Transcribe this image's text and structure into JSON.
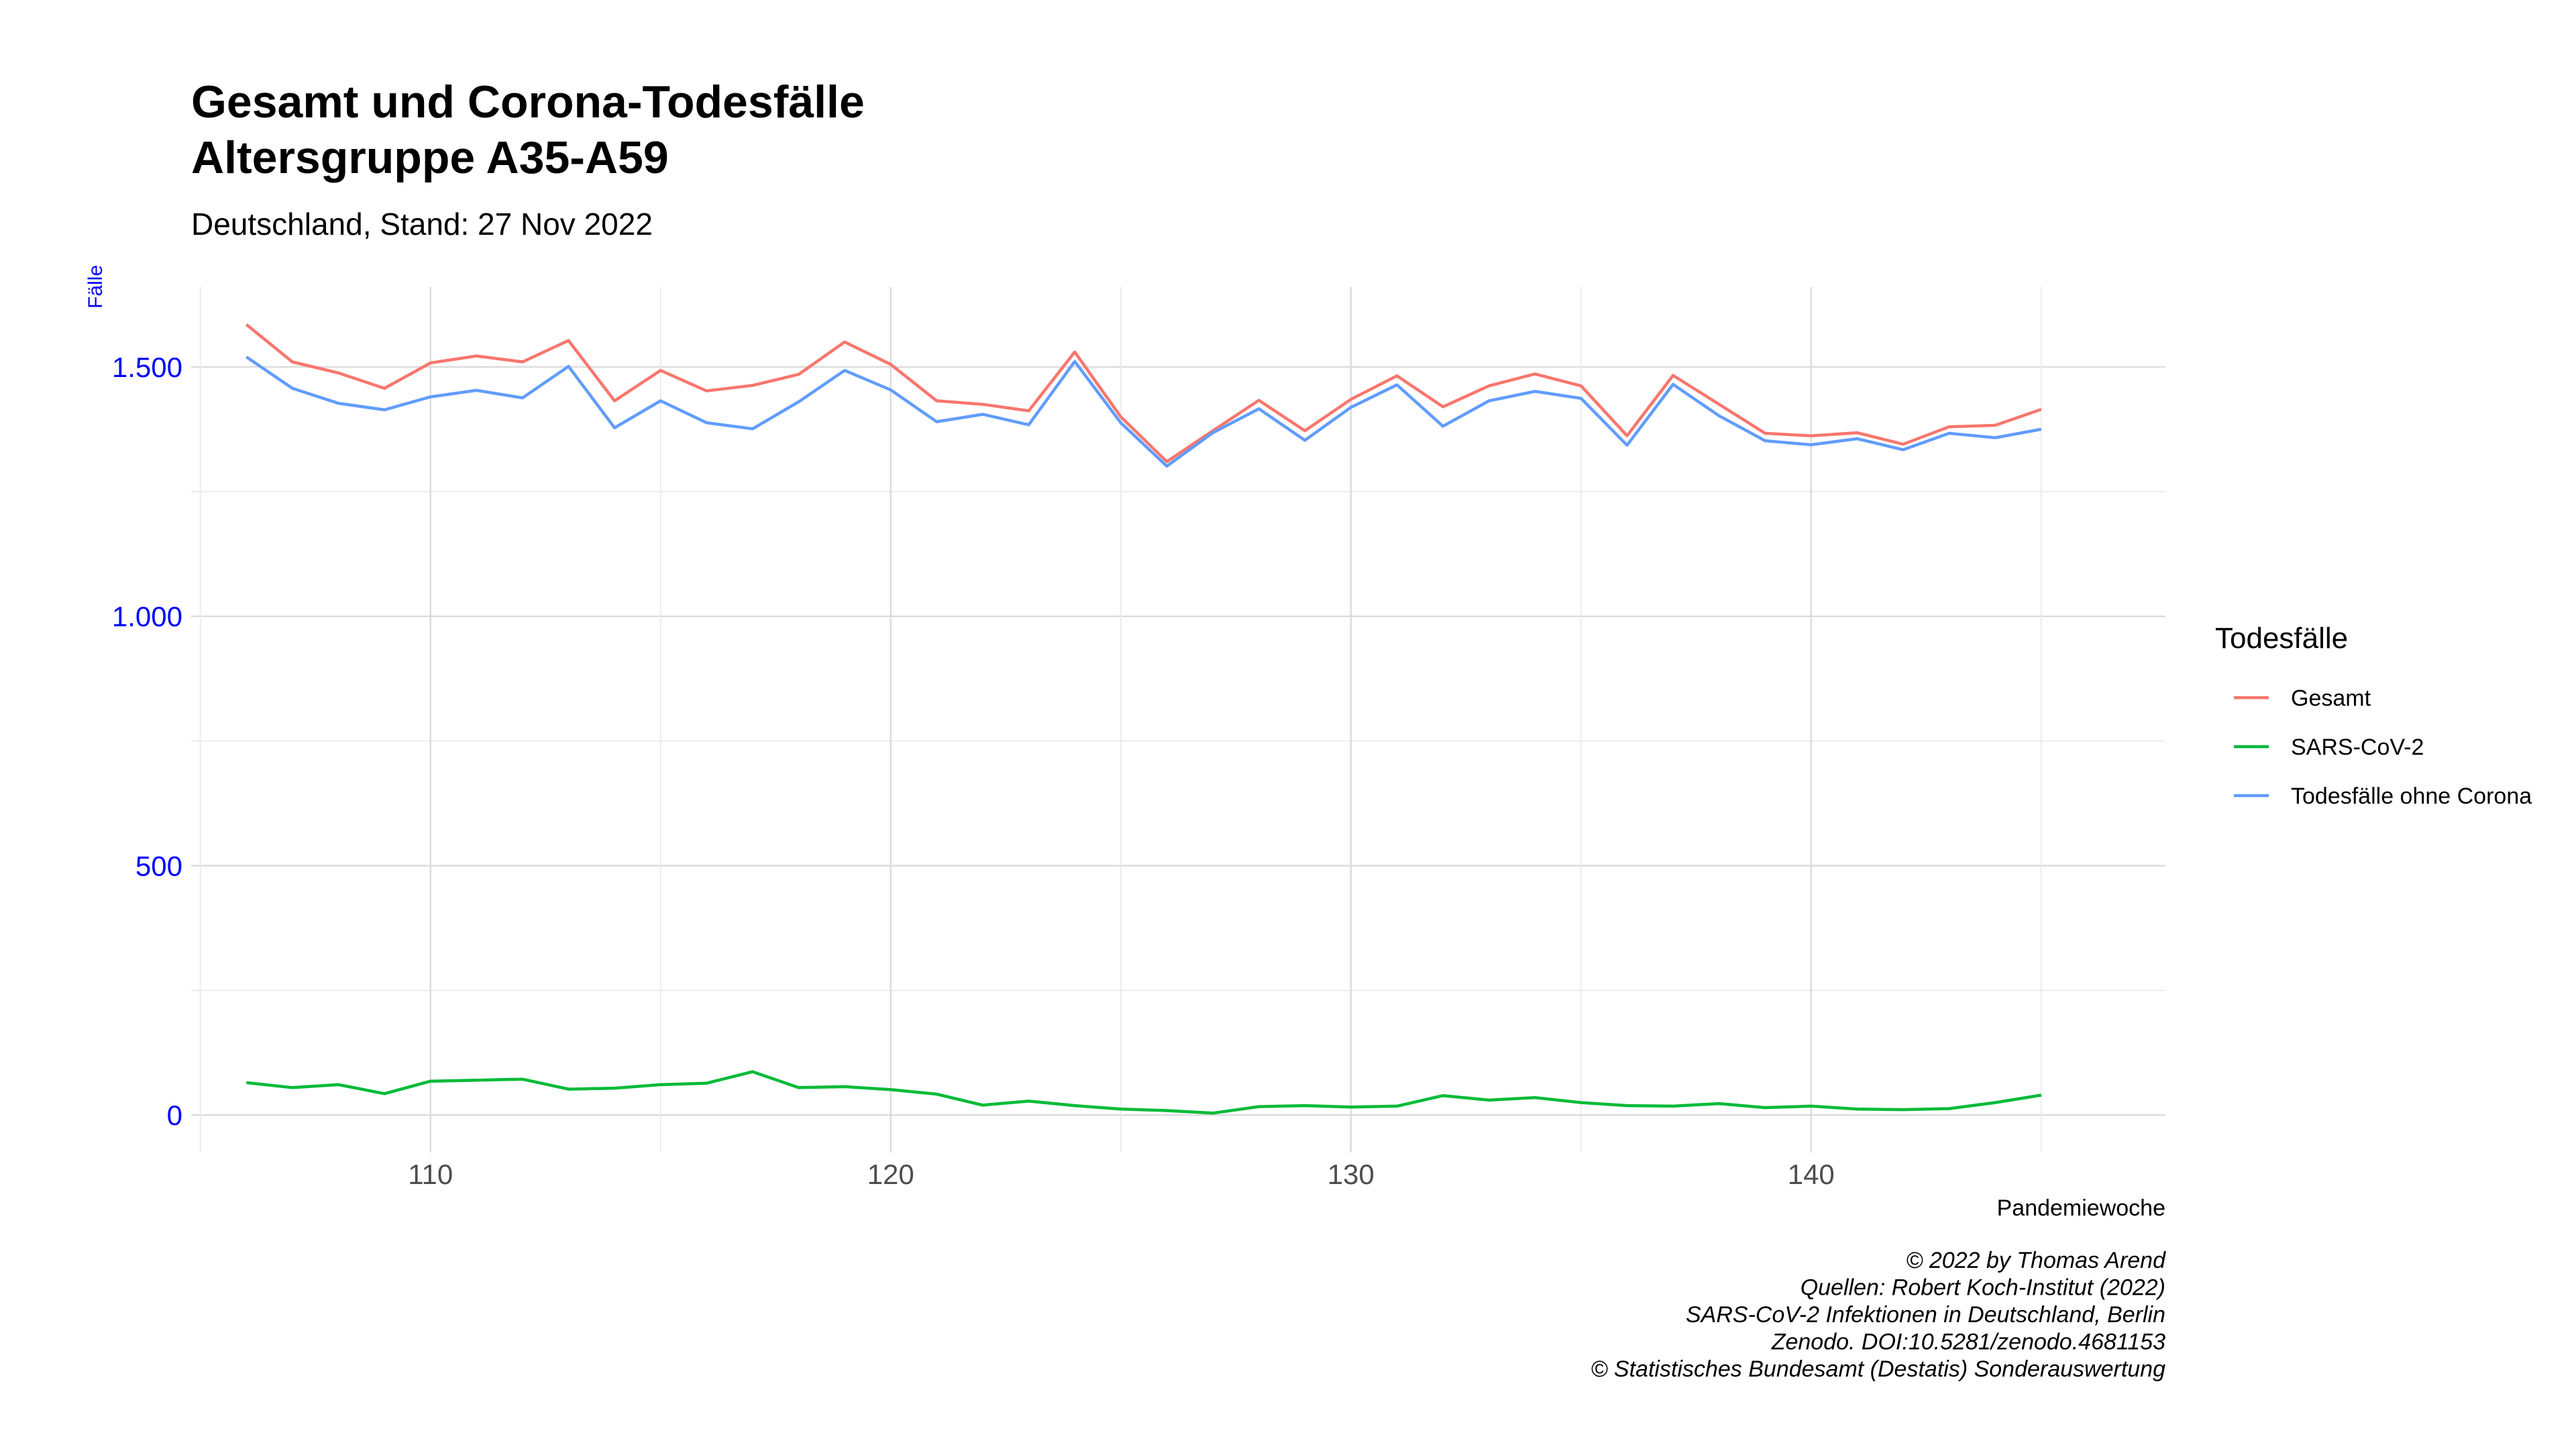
{
  "title_line1": "Gesamt und Corona-Todesfälle",
  "title_line2": "Altersgruppe A35-A59",
  "subtitle": "Deutschland, Stand: 27 Nov 2022",
  "caption": [
    "© 2022 by Thomas Arend",
    "Quellen: Robert Koch-Institut (2022)",
    "SARS-CoV-2 Infektionen in Deutschland, Berlin",
    "Zenodo. DOI:10.5281/zenodo.4681153",
    "© Statistisches Bundesamt (Destatis) Sonderauswertung"
  ],
  "colors": {
    "gesamt": "#F8766D",
    "sars": "#00BA38",
    "ohne": "#619CFF",
    "axis_y": "#0000FF",
    "grid": "#dddddd"
  },
  "chart_data": {
    "type": "line",
    "xlabel": "Pandemiewoche",
    "ylabel": "Fälle",
    "xlim": [
      104.8,
      147.7
    ],
    "ylim": [
      -75,
      1660
    ],
    "x_ticks": [
      110,
      120,
      130,
      140
    ],
    "x_tick_labels": [
      "110",
      "120",
      "130",
      "140"
    ],
    "y_ticks": [
      0,
      500,
      1000,
      1500
    ],
    "y_tick_labels": [
      "0",
      "500",
      "1.000",
      "1.500"
    ],
    "grid": true,
    "legend_title": "Todesfälle",
    "legend_position": "right",
    "x": [
      106,
      107,
      108,
      109,
      110,
      111,
      112,
      113,
      114,
      115,
      116,
      117,
      118,
      119,
      120,
      121,
      122,
      123,
      124,
      125,
      126,
      127,
      128,
      129,
      130,
      131,
      132,
      133,
      134,
      135,
      136,
      137,
      138,
      139,
      140,
      141,
      142,
      143,
      144,
      145
    ],
    "series": [
      {
        "name": "Gesamt",
        "color": "#F8766D",
        "values": [
          1585,
          1510,
          1488,
          1457,
          1508,
          1522,
          1510,
          1553,
          1432,
          1493,
          1452,
          1463,
          1485,
          1550,
          1505,
          1432,
          1425,
          1412,
          1530,
          1400,
          1310,
          1372,
          1433,
          1372,
          1435,
          1482,
          1420,
          1462,
          1486,
          1462,
          1362,
          1483,
          1425,
          1367,
          1362,
          1368,
          1345,
          1380,
          1383,
          1415
        ]
      },
      {
        "name": "SARS-CoV-2",
        "color": "#00BA38",
        "values": [
          65,
          55,
          61,
          43,
          68,
          70,
          72,
          52,
          54,
          61,
          64,
          87,
          55,
          57,
          51,
          42,
          20,
          28,
          19,
          12,
          9,
          4,
          17,
          19,
          16,
          18,
          39,
          30,
          35,
          25,
          19,
          18,
          23,
          15,
          18,
          12,
          11,
          13,
          25,
          40
        ]
      },
      {
        "name": "Todesfälle ohne Corona",
        "color": "#619CFF",
        "values": [
          1520,
          1457,
          1427,
          1414,
          1440,
          1453,
          1438,
          1501,
          1378,
          1432,
          1388,
          1376,
          1430,
          1493,
          1454,
          1390,
          1405,
          1384,
          1511,
          1388,
          1301,
          1368,
          1416,
          1353,
          1419,
          1464,
          1381,
          1432,
          1451,
          1437,
          1343,
          1465,
          1402,
          1352,
          1344,
          1356,
          1334,
          1367,
          1358,
          1375
        ]
      }
    ]
  }
}
